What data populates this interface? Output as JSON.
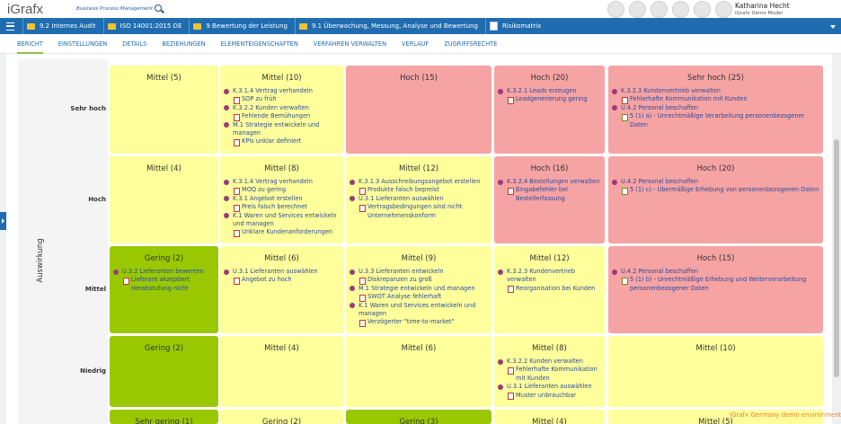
{
  "header": {
    "logo": "iGrafx",
    "tagline": "Business Process Management",
    "user": "Katharina Hecht",
    "model": "iGrafx Demo Model"
  },
  "breadcrumbs": [
    {
      "text": "9.2 Internes Audit",
      "icon": "folder"
    },
    {
      "text": "ISO 14001:2015 DE",
      "icon": "folder"
    },
    {
      "text": "9 Bewertung der Leistung",
      "icon": "folder"
    },
    {
      "text": "9.1 Überwachung, Messung, Analyse und Bewertung",
      "icon": "folder"
    },
    {
      "text": "Risikomatrix",
      "icon": "doc"
    }
  ],
  "tabs": [
    "BERICHT",
    "EINSTELLUNGEN",
    "DETAILS",
    "BEZIEHUNGEN",
    "ELEMENTEIGENSCHAFTEN",
    "VERFAHREN VERWALTEN",
    "VERLAUF",
    "ZUGRIFFSRECHTE"
  ],
  "matrix": {
    "axis_label": "Auswirkung",
    "rows": [
      {
        "label": "Sehr hoch",
        "cells": [
          {
            "title": "Mittel (5)",
            "color": "#ffff9c",
            "items": []
          },
          {
            "title": "Mittel (10)",
            "color": "#ffff9c",
            "items": [
              {
                "icon": "process",
                "text": "K.3.1.4 Vertrag verhandeln"
              },
              {
                "icon": "risk",
                "text": "SOP zu früh"
              },
              {
                "icon": "process",
                "text": "K.3.2.2 Kunden verwalten"
              },
              {
                "icon": "risk",
                "text": "Fehlende Bemühungen"
              },
              {
                "icon": "process",
                "text": "M.1 Strategie entwickeln und managen"
              },
              {
                "icon": "risk",
                "text": "KPIs unklar definiert"
              }
            ]
          },
          {
            "title": "Hoch (15)",
            "color": "#f6a3a4",
            "items": []
          },
          {
            "title": "Hoch (20)",
            "color": "#f6a3a4",
            "items": [
              {
                "icon": "process",
                "text": "K.3.2.1 Leads erzeugen"
              },
              {
                "icon": "risk",
                "text": "Leadgenerierung gering"
              }
            ]
          },
          {
            "title": "Sehr hoch (25)",
            "color": "#f6a3a4",
            "items": [
              {
                "icon": "process",
                "text": "K.3.2.3 Kundenvertrieb verwalten"
              },
              {
                "icon": "risk",
                "text": "Fehlerhafte Kommunikation mit Kunden"
              },
              {
                "icon": "process",
                "text": "U.4.2 Personal beschaffen"
              },
              {
                "icon": "requirement",
                "text": "5 (1) a) - Unrechtmäßige Verarbeitung personenbezogener Daten"
              }
            ]
          }
        ]
      },
      {
        "label": "Hoch",
        "cells": [
          {
            "title": "Mittel (4)",
            "color": "#ffff9c",
            "items": []
          },
          {
            "title": "Mittel (8)",
            "color": "#ffff9c",
            "items": [
              {
                "icon": "process",
                "text": "K.3.1.4 Vertrag verhandeln"
              },
              {
                "icon": "risk",
                "text": "MOQ zu gering"
              },
              {
                "icon": "process",
                "text": "K.3.1 Angebot erstellen"
              },
              {
                "icon": "risk",
                "text": "Preis falsch berechnet"
              },
              {
                "icon": "process",
                "text": "K.1 Waren und Services entwickeln und managen"
              },
              {
                "icon": "risk",
                "text": "Unklare Kundenanforderungen"
              }
            ]
          },
          {
            "title": "Mittel (12)",
            "color": "#ffff9c",
            "items": [
              {
                "icon": "process",
                "text": "K.3.1.3 Ausschreibungsangebot erstellen"
              },
              {
                "icon": "risk",
                "text": "Produkte falsch bepreist"
              },
              {
                "icon": "process",
                "text": "U.3.1 Lieferanten auswählen"
              },
              {
                "icon": "risk",
                "text": "Vertragsbedingungen sind nicht Unternehmenskonform"
              }
            ]
          },
          {
            "title": "Hoch (16)",
            "color": "#f6a3a4",
            "items": [
              {
                "icon": "process",
                "text": "K.3.2.4 Bestellungen verwalten"
              },
              {
                "icon": "risk",
                "text": "Eingabefehler bei Bestellerfassung"
              }
            ]
          },
          {
            "title": "Hoch (20)",
            "color": "#f6a3a4",
            "items": [
              {
                "icon": "process",
                "text": "U.4.2 Personal beschaffen"
              },
              {
                "icon": "requirement",
                "text": "5 (1) c) - Übermäßige Erhebung von personenbezogenen Daten"
              }
            ]
          }
        ]
      },
      {
        "label": "Mittel",
        "cells": [
          {
            "title": "Gering (2)",
            "color": "#99c800",
            "items": [
              {
                "icon": "process",
                "text": "U.3.2 Lieferanten bewerten"
              },
              {
                "icon": "risk",
                "text": "Lieferant akzeptiert Herabstufung nicht"
              }
            ]
          },
          {
            "title": "Mittel (6)",
            "color": "#ffff9c",
            "items": [
              {
                "icon": "process",
                "text": "U.3.1 Lieferanten auswählen"
              },
              {
                "icon": "risk",
                "text": "Angebot zu hoch"
              }
            ]
          },
          {
            "title": "Mittel (9)",
            "color": "#ffff9c",
            "items": [
              {
                "icon": "process",
                "text": "U.3.3 Lieferanten entwickeln"
              },
              {
                "icon": "risk",
                "text": "Diskrepanzen zu groß"
              },
              {
                "icon": "process",
                "text": "M.1 Strategie entwickeln und managen"
              },
              {
                "icon": "risk",
                "text": "SWOT Analyse fehlerhaft"
              },
              {
                "icon": "process",
                "text": "K.1 Waren und Services entwickeln und managen"
              },
              {
                "icon": "risk",
                "text": "Verzögerter \"time-to-market\""
              }
            ]
          },
          {
            "title": "Mittel (12)",
            "color": "#ffff9c",
            "items": [
              {
                "icon": "process",
                "text": "K.3.2.3 Kundenvertrieb verwalten"
              },
              {
                "icon": "risk",
                "text": "Reorganisation bei Kunden"
              }
            ]
          },
          {
            "title": "Hoch (15)",
            "color": "#f6a3a4",
            "items": [
              {
                "icon": "process",
                "text": "U.4.2 Personal beschaffen"
              },
              {
                "icon": "requirement",
                "text": "5 (1) b) - Unrechtmäßige Erhebung und Weiterverarbeitung personenbezogener Daten"
              }
            ]
          }
        ]
      },
      {
        "label": "Niedrig",
        "cells": [
          {
            "title": "Gering (2)",
            "color": "#99c800",
            "items": []
          },
          {
            "title": "Mittel (4)",
            "color": "#ffff9c",
            "items": []
          },
          {
            "title": "Mittel (6)",
            "color": "#ffff9c",
            "items": []
          },
          {
            "title": "Mittel (8)",
            "color": "#ffff9c",
            "items": [
              {
                "icon": "process",
                "text": "K.3.2.2 Kunden verwalten"
              },
              {
                "icon": "risk",
                "text": "Fehlerhafte Kommunikation mit Kunden"
              },
              {
                "icon": "process",
                "text": "U.3.1 Lieferanten auswählen"
              },
              {
                "icon": "risk",
                "text": "Muster unbrauchbar"
              }
            ]
          },
          {
            "title": "Mittel (10)",
            "color": "#ffff9c",
            "items": []
          }
        ]
      },
      {
        "cells": [
          {
            "title": "Sehr gering (1)",
            "color": "#99c800",
            "items": []
          },
          {
            "title": "Gering (2)",
            "color": "#ffff9c",
            "items": []
          },
          {
            "title": "Gering (3)",
            "color": "#99c800",
            "items": []
          },
          {
            "title": "Mittel (4)",
            "color": "#ffff9c",
            "items": []
          },
          {
            "title": "Mittel (5)",
            "color": "#ffff9c",
            "items": []
          }
        ]
      }
    ]
  },
  "footer": "iGrafx Germany demo environment"
}
